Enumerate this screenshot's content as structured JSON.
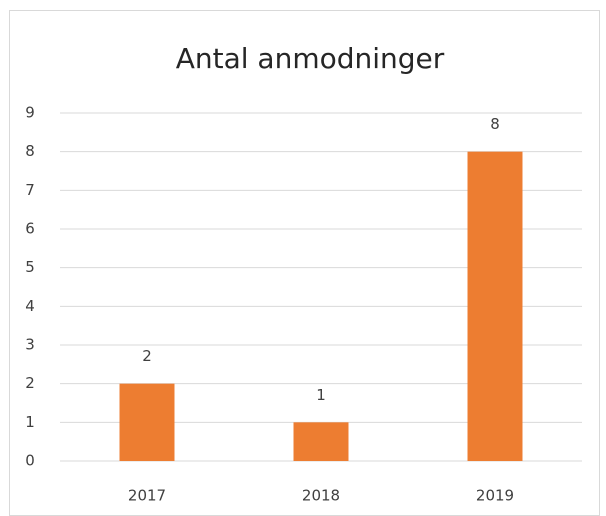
{
  "chart_data": {
    "type": "bar",
    "title": "Antal anmodninger",
    "categories": [
      "2017",
      "2018",
      "2019"
    ],
    "values": [
      2,
      1,
      8
    ],
    "color": "#ed7d31",
    "ylim": [
      0,
      9
    ],
    "yticks": [
      0,
      1,
      2,
      3,
      4,
      5,
      6,
      7,
      8,
      9
    ],
    "grid": true
  }
}
